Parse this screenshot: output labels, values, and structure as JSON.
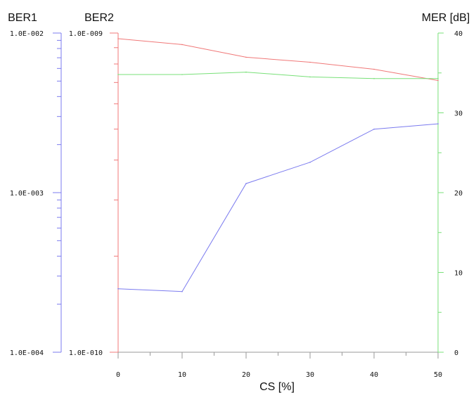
{
  "chart_data": {
    "type": "line",
    "x_axis": {
      "label": "CS [%]",
      "ticks": [
        0,
        10,
        20,
        30,
        40,
        50
      ],
      "tick_labels": [
        "0",
        "10",
        "20",
        "30",
        "40",
        "50"
      ],
      "range": [
        0,
        50
      ]
    },
    "y_axes": [
      {
        "id": "ber1",
        "label": "BER1",
        "scale": "log",
        "range": [
          0.0001,
          0.01
        ],
        "tick_labels": [
          "1.0E-002",
          "1.0E-003",
          "1.0E-004"
        ],
        "color": "#7b7bef"
      },
      {
        "id": "ber2",
        "label": "BER2",
        "scale": "log",
        "range": [
          1e-10,
          1e-09
        ],
        "tick_labels": [
          "1.0E-009",
          "1.0E-010"
        ],
        "color": "#f07878"
      },
      {
        "id": "mer",
        "label": "MER [dB]",
        "scale": "linear",
        "range": [
          0,
          40
        ],
        "tick_labels": [
          "40",
          "30",
          "20",
          "10",
          "0"
        ],
        "color": "#78e078"
      }
    ],
    "series": [
      {
        "axis": "ber1",
        "color": "#7b7bef",
        "x": [
          0,
          10,
          20,
          30,
          40,
          50
        ],
        "y": [
          0.00025,
          0.00024,
          0.00114,
          0.00155,
          0.0025,
          0.0027
        ]
      },
      {
        "axis": "ber2",
        "color": "#f07878",
        "x": [
          0,
          10,
          20,
          30,
          40,
          50
        ],
        "y": [
          9.6e-10,
          9.2e-10,
          8.4e-10,
          8.1e-10,
          7.7e-10,
          7.1e-10
        ]
      },
      {
        "axis": "mer",
        "color": "#78e078",
        "x": [
          0,
          10,
          20,
          30,
          40,
          50
        ],
        "y": [
          34.8,
          34.8,
          35.1,
          34.5,
          34.3,
          34.3
        ]
      }
    ],
    "grid": false
  }
}
